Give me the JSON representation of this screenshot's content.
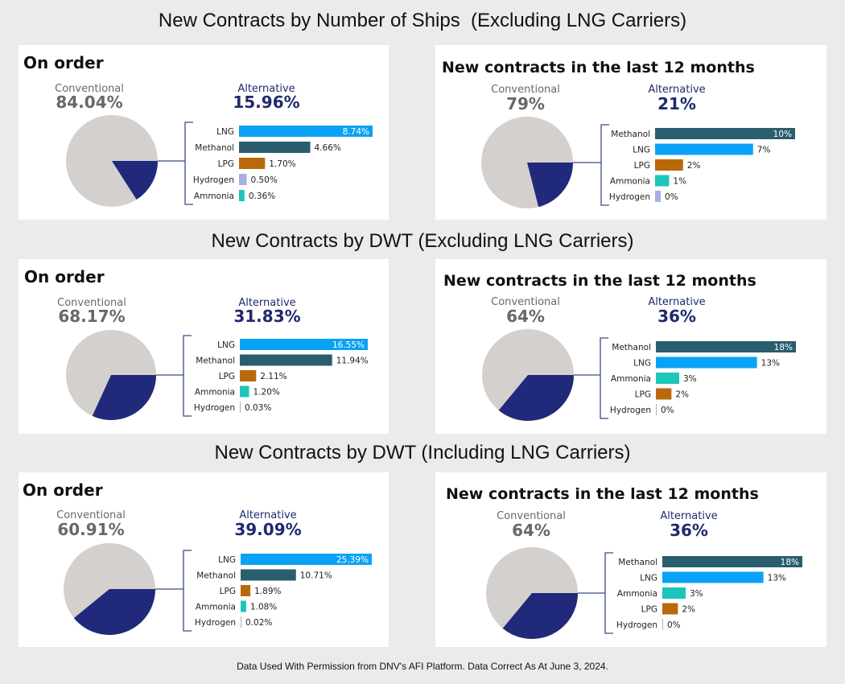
{
  "page": {
    "footer": "Data Used With Permission from DNV's AFI Platform. Data Correct As At June 3, 2024."
  },
  "colors": {
    "conventional": "#d4d0ce",
    "alternative": "#20297a",
    "conventional_text": "#6b6763",
    "alternative_text": "#1f2a6e",
    "LNG": "#0aa2f6",
    "Methanol": "#2a5d6e",
    "LPG": "#b9690b",
    "Hydrogen": "#a8aee6",
    "Ammonia": "#1cc6b9"
  },
  "sections": [
    {
      "title": "New Contracts by Number of Ships  (Excluding LNG Carriers)",
      "panels": [
        {
          "heading": "On order",
          "conventional_label": "Conventional",
          "conventional_value": "84.04%",
          "alternative_label": "Alternative",
          "alternative_value": "15.96%"
        },
        {
          "heading": "New contracts in the last 12 months",
          "conventional_label": "Conventional",
          "conventional_value": "79%",
          "alternative_label": "Alternative",
          "alternative_value": "21%"
        }
      ]
    },
    {
      "title": "New Contracts by DWT (Excluding LNG Carriers)",
      "panels": [
        {
          "heading": "On order",
          "conventional_label": "Conventional",
          "conventional_value": "68.17%",
          "alternative_label": "Alternative",
          "alternative_value": "31.83%"
        },
        {
          "heading": "New contracts in the last 12 months",
          "conventional_label": "Conventional",
          "conventional_value": "64%",
          "alternative_label": "Alternative",
          "alternative_value": "36%"
        }
      ]
    },
    {
      "title": "New Contracts by DWT (Including LNG Carriers)",
      "panels": [
        {
          "heading": "On order",
          "conventional_label": "Conventional",
          "conventional_value": "60.91%",
          "alternative_label": "Alternative",
          "alternative_value": "39.09%"
        },
        {
          "heading": "New contracts in the last 12 months",
          "conventional_label": "Conventional",
          "conventional_value": "64%",
          "alternative_label": "Alternative",
          "alternative_value": "36%"
        }
      ]
    }
  ],
  "chart_data": [
    {
      "type": "pie+bar",
      "pie": [
        {
          "name": "Conventional",
          "value": 84.04
        },
        {
          "name": "Alternative",
          "value": 15.96
        }
      ],
      "bars": {
        "categories": [
          "LNG",
          "Methanol",
          "LPG",
          "Hydrogen",
          "Ammonia"
        ],
        "values": [
          8.74,
          4.66,
          1.7,
          0.5,
          0.36
        ],
        "labels": [
          "8.74%",
          "4.66%",
          "1.70%",
          "0.50%",
          "0.36%"
        ]
      }
    },
    {
      "type": "pie+bar",
      "pie": [
        {
          "name": "Conventional",
          "value": 79
        },
        {
          "name": "Alternative",
          "value": 21
        }
      ],
      "bars": {
        "categories": [
          "Methanol",
          "LNG",
          "LPG",
          "Ammonia",
          "Hydrogen"
        ],
        "values": [
          10,
          7,
          2,
          1,
          0.4
        ],
        "labels": [
          "10%",
          "7%",
          "2%",
          "1%",
          "0%"
        ]
      }
    },
    {
      "type": "pie+bar",
      "pie": [
        {
          "name": "Conventional",
          "value": 68.17
        },
        {
          "name": "Alternative",
          "value": 31.83
        }
      ],
      "bars": {
        "categories": [
          "LNG",
          "Methanol",
          "LPG",
          "Ammonia",
          "Hydrogen"
        ],
        "values": [
          16.55,
          11.94,
          2.11,
          1.2,
          0.03
        ],
        "labels": [
          "16.55%",
          "11.94%",
          "2.11%",
          "1.20%",
          "0.03%"
        ]
      }
    },
    {
      "type": "pie+bar",
      "pie": [
        {
          "name": "Conventional",
          "value": 64
        },
        {
          "name": "Alternative",
          "value": 36
        }
      ],
      "bars": {
        "categories": [
          "Methanol",
          "LNG",
          "Ammonia",
          "LPG",
          "Hydrogen"
        ],
        "values": [
          18,
          13,
          3,
          2,
          0.02
        ],
        "labels": [
          "18%",
          "13%",
          "3%",
          "2%",
          "0%"
        ]
      }
    },
    {
      "type": "pie+bar",
      "pie": [
        {
          "name": "Conventional",
          "value": 60.91
        },
        {
          "name": "Alternative",
          "value": 39.09
        }
      ],
      "bars": {
        "categories": [
          "LNG",
          "Methanol",
          "LPG",
          "Ammonia",
          "Hydrogen"
        ],
        "values": [
          25.39,
          10.71,
          1.89,
          1.08,
          0.02
        ],
        "labels": [
          "25.39%",
          "10.71%",
          "1.89%",
          "1.08%",
          "0.02%"
        ]
      }
    },
    {
      "type": "pie+bar",
      "pie": [
        {
          "name": "Conventional",
          "value": 64
        },
        {
          "name": "Alternative",
          "value": 36
        }
      ],
      "bars": {
        "categories": [
          "Methanol",
          "LNG",
          "Ammonia",
          "LPG",
          "Hydrogen"
        ],
        "values": [
          18,
          13,
          3,
          2,
          0.02
        ],
        "labels": [
          "18%",
          "13%",
          "3%",
          "2%",
          "0%"
        ]
      }
    }
  ]
}
